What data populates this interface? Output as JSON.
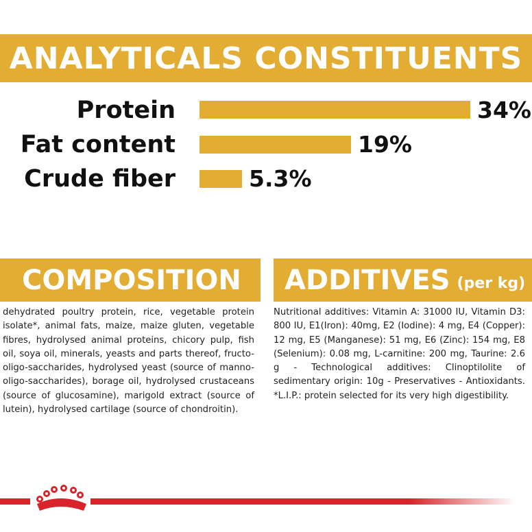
{
  "analytics": {
    "title": "ANALYTICALS CONSTITUENTS",
    "rows": [
      {
        "label": "Protein",
        "value": "34%",
        "percent": 34
      },
      {
        "label": "Fat content",
        "value": "19%",
        "percent": 19
      },
      {
        "label": "Crude fiber",
        "value": "5.3%",
        "percent": 5.3
      }
    ]
  },
  "composition": {
    "title": "COMPOSITION",
    "text": "dehydrated poultry protein, rice, vegetable protein isolate*, animal fats, maize, maize gluten, vegetable fibres, hydrolysed animal proteins, chicory pulp, fish oil, soya oil, minerals, yeasts and parts thereof, fructo-oligo-saccharides, hydrolysed yeast (source of manno-oligo-saccharides), borage oil, hydrolysed crustaceans (source of glucosamine), marigold extract (source of lutein), hydrolysed cartilage (source of chondroitin)."
  },
  "additives": {
    "title": "ADDITIVES",
    "suffix": "(per kg)",
    "text": "Nutritional additives: Vitamin A: 31000 IU, Vitamin D3: 800 IU, E1(Iron): 40mg, E2 (Iodine): 4 mg, E4 (Copper): 12 mg, E5 (Manganese): 51 mg, E6 (Zinc): 154 mg, E8 (Selenium): 0.08 mg, L-carnitine: 200 mg, Taurine: 2.6 g - Technological additives: Clinoptilolite of sedimentary origin: 10g - Preservatives - Antioxidants. *L.I.P.: protein selected for its very high digestibility."
  },
  "colors": {
    "accent": "#e3ac32",
    "brand_red": "#d8232a"
  },
  "footer": {
    "logo_icon": "crown-icon"
  }
}
